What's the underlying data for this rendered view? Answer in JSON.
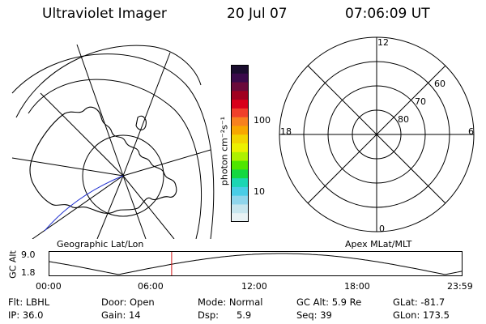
{
  "header": {
    "instrument": "Ultraviolet Imager",
    "date": "20 Jul 07",
    "time": "07:06:09 UT"
  },
  "colorbar": {
    "unit_label": "photon cm⁻²s⁻¹",
    "ticks": [
      "100",
      "10"
    ],
    "colors": [
      "#1a0d2e",
      "#3a0a4a",
      "#6a0a3a",
      "#a00020",
      "#d8001a",
      "#f0402a",
      "#f7811e",
      "#f7a700",
      "#f2d400",
      "#ecf000",
      "#aef000",
      "#4fe600",
      "#14d840",
      "#1bd6b3",
      "#49cde6",
      "#8fd6ec",
      "#c7e6ee",
      "#e8f2f4"
    ]
  },
  "geo_panel": {
    "label": "Geographic Lat/Lon"
  },
  "mag_panel": {
    "label": "Apex MLat/MLT",
    "mlt_labels": {
      "top": "12",
      "left": "18",
      "right": "6",
      "bottom": "0"
    },
    "lat_labels": [
      "60",
      "70",
      "80"
    ]
  },
  "altitude_plot": {
    "ylabel": "GC Alt",
    "yticks": [
      "9.0",
      "1.8"
    ],
    "xticks": [
      "00:00",
      "06:00",
      "12:00",
      "18:00",
      "23:59"
    ],
    "current_time_hours": 7.1,
    "line_color": "#000000",
    "marker_color": "#d01010"
  },
  "info": {
    "flt": "Flt: LBHL",
    "ip": "IP: 36.0",
    "door": "Door: Open",
    "gain": "Gain: 14",
    "mode": "Mode: Normal",
    "dsp": "Dsp:      5.9",
    "gc_alt": "GC Alt: 5.9 Re",
    "seq": "Seq: 39",
    "glat": "GLat: -81.7",
    "glon": "GLon: 173.5"
  }
}
